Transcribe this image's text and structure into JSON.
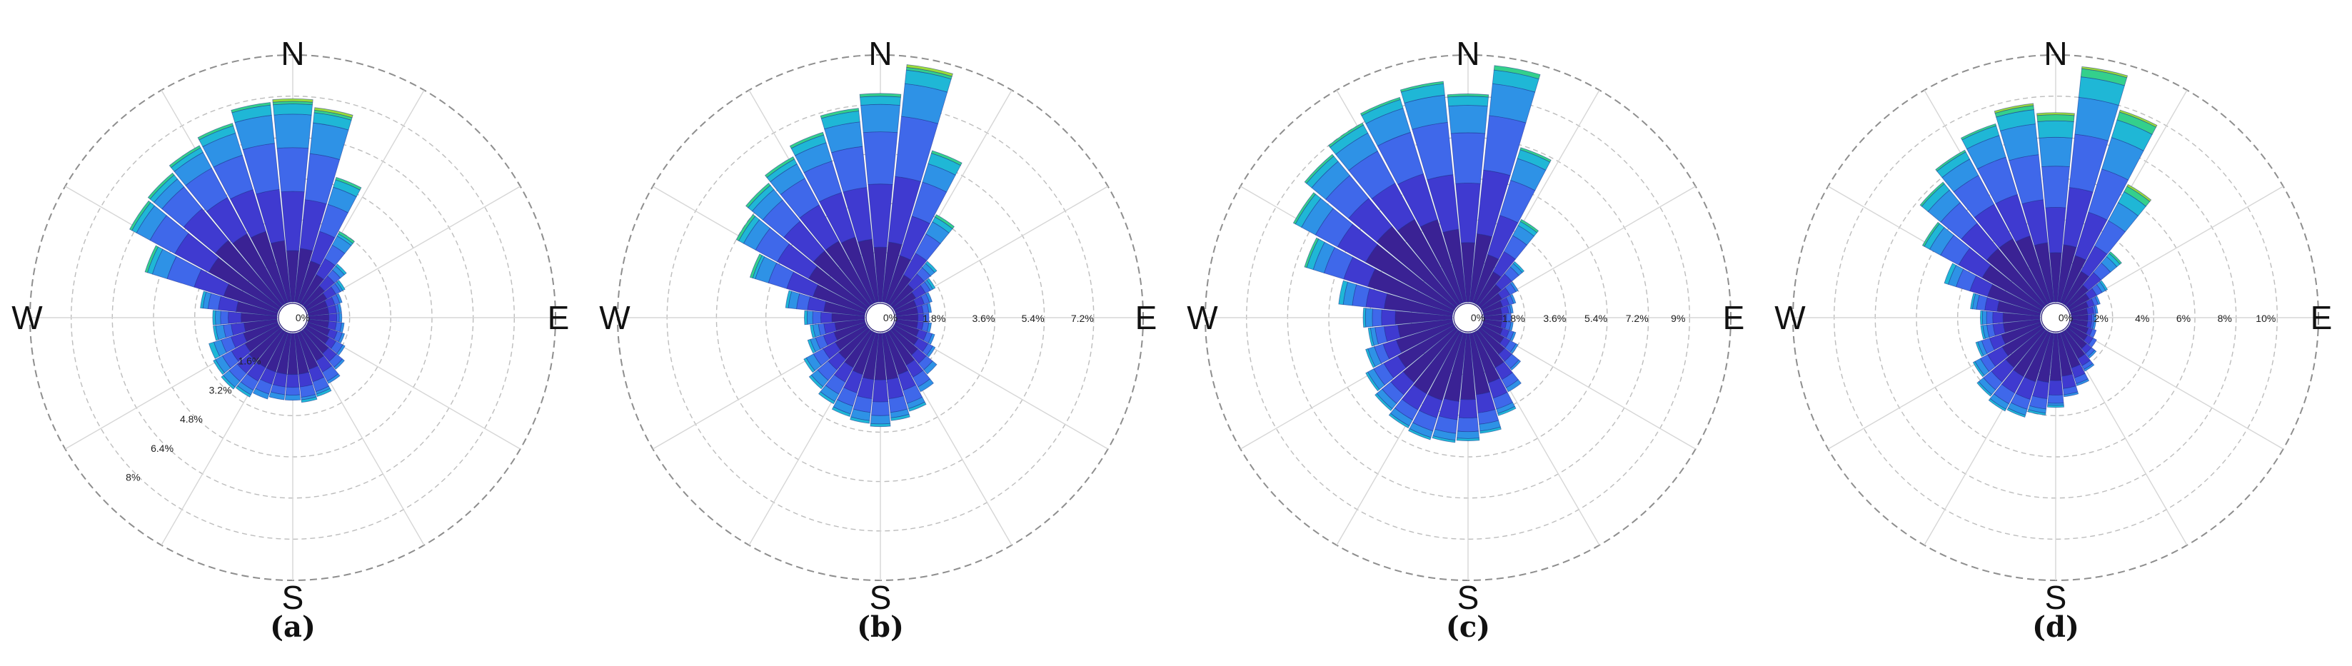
{
  "colors": {
    "bins": [
      "#3a2294",
      "#3f3ad0",
      "#3f68ea",
      "#2e92e6",
      "#1fb7d6",
      "#34d08c",
      "#9adc3a"
    ],
    "ring": "#bdbdbd",
    "spoke": "#d6d6d6"
  },
  "chart_data": [
    {
      "type": "wind-rose",
      "caption": "(a)",
      "directions": [
        "N",
        "N",
        "NNE",
        "NNE",
        "NE",
        "NE",
        "ENE",
        "ENE",
        "E",
        "E",
        "ESE",
        "ESE",
        "SE",
        "SE",
        "SSE",
        "SSE",
        "S",
        "S",
        "SSW",
        "SSW",
        "SW",
        "SW",
        "WSW",
        "WSW",
        "W",
        "W",
        "WNW",
        "WNW",
        "NW",
        "NW",
        "NNW",
        "NNW"
      ],
      "cardinals": [
        "N",
        "E",
        "S",
        "W"
      ],
      "ring_labels": [
        "0%",
        "1.6%",
        "3.2%",
        "4.8%",
        "6.4%",
        "8%"
      ],
      "rmax": 9.6,
      "stacked_frequency_pct": [
        [
          2.0,
          4.3,
          6.0,
          7.3,
          7.7,
          7.8,
          7.9
        ],
        [
          2.1,
          4.0,
          5.8,
          7.0,
          7.4,
          7.5,
          7.6
        ],
        [
          1.7,
          2.9,
          4.0,
          4.7,
          5.0,
          5.1,
          5.1
        ],
        [
          1.3,
          2.0,
          2.6,
          3.0,
          3.1,
          3.2,
          3.2
        ],
        [
          1.0,
          1.5,
          1.8,
          2.0,
          2.1,
          2.1,
          2.1
        ],
        [
          0.9,
          1.3,
          1.5,
          1.6,
          1.7,
          1.7,
          1.7
        ],
        [
          0.8,
          1.1,
          1.3,
          1.4,
          1.4,
          1.4,
          1.4
        ],
        [
          0.8,
          1.1,
          1.2,
          1.3,
          1.3,
          1.3,
          1.3
        ],
        [
          0.8,
          1.1,
          1.2,
          1.3,
          1.3,
          1.3,
          1.3
        ],
        [
          0.8,
          1.1,
          1.3,
          1.4,
          1.4,
          1.4,
          1.4
        ],
        [
          0.9,
          1.2,
          1.4,
          1.5,
          1.5,
          1.5,
          1.5
        ],
        [
          1.0,
          1.3,
          1.6,
          1.7,
          1.7,
          1.7,
          1.7
        ],
        [
          1.2,
          1.6,
          1.9,
          2.0,
          2.0,
          2.0,
          2.0
        ],
        [
          1.3,
          1.8,
          2.2,
          2.3,
          2.3,
          2.3,
          2.3
        ],
        [
          1.5,
          2.0,
          2.4,
          2.5,
          2.6,
          2.6,
          2.6
        ],
        [
          1.6,
          2.1,
          2.5,
          2.6,
          2.7,
          2.7,
          2.7
        ],
        [
          1.6,
          2.1,
          2.4,
          2.6,
          2.6,
          2.6,
          2.6
        ],
        [
          1.6,
          2.1,
          2.4,
          2.6,
          2.6,
          2.6,
          2.6
        ],
        [
          1.6,
          2.1,
          2.5,
          2.7,
          2.7,
          2.7,
          2.7
        ],
        [
          1.6,
          2.2,
          2.6,
          2.8,
          2.9,
          2.9,
          2.9
        ],
        [
          1.6,
          2.2,
          2.6,
          2.9,
          3.0,
          3.0,
          3.0
        ],
        [
          1.5,
          2.1,
          2.5,
          2.8,
          2.9,
          2.9,
          2.9
        ],
        [
          1.4,
          1.9,
          2.3,
          2.6,
          2.8,
          2.8,
          2.8
        ],
        [
          1.3,
          1.8,
          2.1,
          2.4,
          2.5,
          2.5,
          2.5
        ],
        [
          1.4,
          1.9,
          2.2,
          2.4,
          2.5,
          2.5,
          2.5
        ],
        [
          1.6,
          2.3,
          2.7,
          2.9,
          3.0,
          3.0,
          3.0
        ],
        [
          2.2,
          3.4,
          4.5,
          5.1,
          5.3,
          5.4,
          5.4
        ],
        [
          3.1,
          4.6,
          5.7,
          6.3,
          6.5,
          6.6,
          6.6
        ],
        [
          3.3,
          4.9,
          6.0,
          6.4,
          6.6,
          6.7,
          6.7
        ],
        [
          3.1,
          4.7,
          6.0,
          6.7,
          6.9,
          7.0,
          7.0
        ],
        [
          2.9,
          4.6,
          6.0,
          6.9,
          7.2,
          7.3,
          7.3
        ],
        [
          2.4,
          4.4,
          6.2,
          7.3,
          7.7,
          7.8,
          7.8
        ]
      ]
    },
    {
      "type": "wind-rose",
      "caption": "(b)",
      "directions": [
        "N",
        "N",
        "NNE",
        "NNE",
        "NE",
        "NE",
        "ENE",
        "ENE",
        "E",
        "E",
        "ESE",
        "ESE",
        "SE",
        "SE",
        "SSE",
        "SSE",
        "S",
        "S",
        "SSW",
        "SSW",
        "SW",
        "SW",
        "WSW",
        "WSW",
        "W",
        "W",
        "WNW",
        "WNW",
        "NW",
        "NW",
        "NNW",
        "NNW"
      ],
      "cardinals": [
        "N",
        "E",
        "S",
        "W"
      ],
      "ring_labels": [
        "0%",
        "1.8%",
        "3.6%",
        "5.4%",
        "7.2%"
      ],
      "rmax": 9.0,
      "stacked_frequency_pct": [
        [
          2.0,
          4.3,
          6.2,
          7.2,
          7.5,
          7.6,
          7.6
        ],
        [
          2.2,
          4.6,
          6.8,
          8.0,
          8.5,
          8.6,
          8.7
        ],
        [
          1.8,
          3.3,
          4.6,
          5.3,
          5.7,
          5.8,
          5.8
        ],
        [
          1.2,
          2.1,
          2.9,
          3.4,
          3.6,
          3.7,
          3.7
        ],
        [
          1.0,
          1.5,
          1.8,
          2.0,
          2.1,
          2.1,
          2.1
        ],
        [
          0.9,
          1.3,
          1.5,
          1.6,
          1.7,
          1.7,
          1.7
        ],
        [
          0.8,
          1.1,
          1.3,
          1.4,
          1.4,
          1.4,
          1.4
        ],
        [
          0.8,
          1.0,
          1.2,
          1.3,
          1.3,
          1.3,
          1.3
        ],
        [
          0.8,
          1.0,
          1.2,
          1.2,
          1.2,
          1.2,
          1.2
        ],
        [
          0.8,
          1.0,
          1.2,
          1.3,
          1.3,
          1.3,
          1.3
        ],
        [
          0.9,
          1.2,
          1.4,
          1.5,
          1.5,
          1.5,
          1.5
        ],
        [
          1.0,
          1.4,
          1.6,
          1.7,
          1.7,
          1.7,
          1.7
        ],
        [
          1.2,
          1.6,
          1.9,
          2.1,
          2.1,
          2.1,
          2.1
        ],
        [
          1.4,
          1.9,
          2.3,
          2.5,
          2.5,
          2.5,
          2.5
        ],
        [
          1.6,
          2.2,
          2.7,
          2.9,
          3.0,
          3.0,
          3.0
        ],
        [
          1.7,
          2.4,
          2.9,
          3.1,
          3.2,
          3.2,
          3.2
        ],
        [
          1.7,
          2.5,
          3.0,
          3.3,
          3.4,
          3.4,
          3.4
        ],
        [
          1.7,
          2.4,
          2.9,
          3.2,
          3.3,
          3.3,
          3.3
        ],
        [
          1.6,
          2.3,
          2.8,
          3.1,
          3.2,
          3.2,
          3.2
        ],
        [
          1.5,
          2.1,
          2.6,
          2.9,
          3.0,
          3.0,
          3.0
        ],
        [
          1.4,
          1.9,
          2.4,
          2.7,
          2.8,
          2.8,
          2.8
        ],
        [
          1.3,
          1.8,
          2.2,
          2.5,
          2.6,
          2.6,
          2.6
        ],
        [
          1.2,
          1.6,
          1.9,
          2.1,
          2.2,
          2.2,
          2.2
        ],
        [
          1.1,
          1.5,
          1.7,
          1.9,
          2.0,
          2.0,
          2.0
        ],
        [
          1.2,
          1.6,
          1.9,
          2.1,
          2.2,
          2.2,
          2.2
        ],
        [
          1.5,
          2.1,
          2.5,
          2.8,
          2.9,
          2.9,
          2.9
        ],
        [
          2.0,
          3.0,
          3.7,
          4.2,
          4.3,
          4.4,
          4.4
        ],
        [
          2.4,
          3.7,
          4.6,
          5.1,
          5.3,
          5.4,
          5.4
        ],
        [
          2.6,
          4.0,
          5.0,
          5.5,
          5.7,
          5.8,
          5.8
        ],
        [
          2.6,
          4.1,
          5.2,
          5.8,
          6.0,
          6.1,
          6.1
        ],
        [
          2.5,
          4.2,
          5.4,
          6.1,
          6.4,
          6.5,
          6.5
        ],
        [
          2.3,
          4.2,
          5.7,
          6.6,
          7.0,
          7.1,
          7.1
        ]
      ]
    },
    {
      "type": "wind-rose",
      "caption": "(c)",
      "directions": [
        "N",
        "N",
        "NNE",
        "NNE",
        "NE",
        "NE",
        "ENE",
        "ENE",
        "E",
        "E",
        "ESE",
        "ESE",
        "SE",
        "SE",
        "SSE",
        "SSE",
        "S",
        "S",
        "SSW",
        "SSW",
        "SW",
        "SW",
        "WSW",
        "WSW",
        "W",
        "W",
        "WNW",
        "WNW",
        "NW",
        "NW",
        "NNW",
        "NNW"
      ],
      "cardinals": [
        "N",
        "E",
        "S",
        "W"
      ],
      "ring_labels": [
        "0%",
        "1.8%",
        "3.6%",
        "5.4%",
        "7.2%",
        "9%"
      ],
      "rmax": 10.8,
      "stacked_frequency_pct": [
        [
          2.6,
          5.2,
          7.4,
          8.6,
          9.0,
          9.1,
          9.1
        ],
        [
          3.0,
          5.8,
          8.2,
          9.6,
          10.2,
          10.4,
          10.4
        ],
        [
          2.2,
          4.0,
          5.6,
          6.6,
          7.0,
          7.1,
          7.1
        ],
        [
          1.6,
          2.6,
          3.4,
          3.9,
          4.1,
          4.2,
          4.2
        ],
        [
          1.2,
          1.8,
          2.2,
          2.4,
          2.5,
          2.5,
          2.5
        ],
        [
          1.0,
          1.4,
          1.7,
          1.8,
          1.8,
          1.8,
          1.8
        ],
        [
          0.9,
          1.2,
          1.4,
          1.5,
          1.5,
          1.5,
          1.5
        ],
        [
          0.8,
          1.1,
          1.2,
          1.3,
          1.3,
          1.3,
          1.3
        ],
        [
          0.8,
          1.0,
          1.2,
          1.2,
          1.2,
          1.2,
          1.2
        ],
        [
          0.8,
          1.0,
          1.2,
          1.3,
          1.3,
          1.3,
          1.3
        ],
        [
          0.9,
          1.2,
          1.4,
          1.5,
          1.5,
          1.5,
          1.5
        ],
        [
          1.1,
          1.4,
          1.7,
          1.8,
          1.8,
          1.8,
          1.8
        ],
        [
          1.4,
          1.8,
          2.2,
          2.3,
          2.3,
          2.3,
          2.3
        ],
        [
          1.8,
          2.4,
          2.8,
          3.0,
          3.0,
          3.0,
          3.0
        ],
        [
          2.3,
          3.0,
          3.5,
          3.7,
          3.8,
          3.8,
          3.8
        ],
        [
          2.7,
          3.5,
          4.0,
          4.3,
          4.4,
          4.4,
          4.4
        ],
        [
          2.9,
          3.7,
          4.3,
          4.6,
          4.7,
          4.7,
          4.7
        ],
        [
          3.0,
          3.8,
          4.4,
          4.7,
          4.8,
          4.8,
          4.8
        ],
        [
          3.1,
          3.9,
          4.5,
          4.8,
          4.9,
          4.9,
          4.9
        ],
        [
          3.1,
          3.9,
          4.4,
          4.7,
          4.8,
          4.8,
          4.8
        ],
        [
          3.0,
          3.7,
          4.2,
          4.5,
          4.6,
          4.6,
          4.6
        ],
        [
          2.8,
          3.5,
          4.0,
          4.3,
          4.4,
          4.4,
          4.4
        ],
        [
          2.6,
          3.2,
          3.6,
          3.9,
          4.0,
          4.0,
          4.0
        ],
        [
          2.4,
          3.0,
          3.4,
          3.6,
          3.7,
          3.7,
          3.7
        ],
        [
          2.5,
          3.1,
          3.5,
          3.8,
          3.9,
          3.9,
          3.9
        ],
        [
          3.0,
          3.8,
          4.4,
          4.8,
          5.0,
          5.0,
          5.0
        ],
        [
          3.9,
          5.0,
          5.9,
          6.4,
          6.7,
          6.8,
          6.8
        ],
        [
          4.4,
          5.8,
          6.9,
          7.6,
          7.9,
          8.0,
          8.0
        ],
        [
          4.5,
          6.1,
          7.4,
          8.2,
          8.5,
          8.6,
          8.6
        ],
        [
          4.2,
          6.0,
          7.6,
          8.5,
          8.9,
          9.0,
          9.0
        ],
        [
          3.8,
          5.9,
          7.8,
          8.9,
          9.3,
          9.4,
          9.4
        ],
        [
          3.2,
          5.6,
          7.9,
          9.1,
          9.6,
          9.7,
          9.7
        ]
      ]
    },
    {
      "type": "wind-rose",
      "caption": "(d)",
      "directions": [
        "N",
        "N",
        "NNE",
        "NNE",
        "NE",
        "NE",
        "ENE",
        "ENE",
        "E",
        "E",
        "ESE",
        "ESE",
        "SE",
        "SE",
        "SSE",
        "SSE",
        "S",
        "S",
        "SSW",
        "SSW",
        "SW",
        "SW",
        "WSW",
        "WSW",
        "W",
        "W",
        "WNW",
        "WNW",
        "NW",
        "NW",
        "NNW",
        "NNW"
      ],
      "cardinals": [
        "N",
        "E",
        "S",
        "W"
      ],
      "ring_labels": [
        "0%",
        "2%",
        "4%",
        "6%",
        "8%",
        "10%"
      ],
      "rmax": 12.0,
      "stacked_frequency_pct": [
        [
          2.4,
          4.6,
          6.6,
          8.0,
          8.8,
          9.1,
          9.2
        ],
        [
          2.8,
          5.6,
          8.2,
          10.0,
          11.0,
          11.4,
          11.5
        ],
        [
          2.4,
          4.6,
          6.8,
          8.4,
          9.3,
          9.7,
          9.8
        ],
        [
          1.8,
          3.2,
          4.6,
          5.6,
          6.2,
          6.5,
          6.6
        ],
        [
          1.3,
          2.1,
          2.7,
          3.1,
          3.3,
          3.4,
          3.4
        ],
        [
          1.1,
          1.5,
          1.8,
          2.0,
          2.1,
          2.1,
          2.1
        ],
        [
          0.9,
          1.2,
          1.4,
          1.5,
          1.5,
          1.5,
          1.5
        ],
        [
          0.8,
          1.1,
          1.2,
          1.3,
          1.3,
          1.3,
          1.3
        ],
        [
          0.8,
          1.0,
          1.1,
          1.2,
          1.2,
          1.2,
          1.2
        ],
        [
          0.8,
          1.0,
          1.1,
          1.2,
          1.2,
          1.2,
          1.2
        ],
        [
          0.9,
          1.1,
          1.3,
          1.3,
          1.3,
          1.3,
          1.3
        ],
        [
          1.0,
          1.3,
          1.5,
          1.5,
          1.5,
          1.5,
          1.5
        ],
        [
          1.2,
          1.5,
          1.7,
          1.8,
          1.8,
          1.8,
          1.8
        ],
        [
          1.5,
          1.9,
          2.1,
          2.2,
          2.2,
          2.2,
          2.2
        ],
        [
          1.8,
          2.3,
          2.6,
          2.7,
          2.7,
          2.7,
          2.7
        ],
        [
          2.1,
          2.7,
          3.0,
          3.1,
          3.1,
          3.1,
          3.1
        ],
        [
          2.3,
          3.0,
          3.4,
          3.5,
          3.6,
          3.6,
          3.6
        ],
        [
          2.4,
          3.2,
          3.7,
          3.9,
          4.0,
          4.0,
          4.0
        ],
        [
          2.5,
          3.4,
          3.9,
          4.2,
          4.3,
          4.3,
          4.3
        ],
        [
          2.5,
          3.4,
          4.0,
          4.3,
          4.4,
          4.4,
          4.4
        ],
        [
          2.4,
          3.3,
          3.8,
          4.1,
          4.2,
          4.2,
          4.2
        ],
        [
          2.2,
          3.0,
          3.4,
          3.7,
          3.8,
          3.8,
          3.8
        ],
        [
          2.0,
          2.6,
          3.0,
          3.2,
          3.3,
          3.3,
          3.3
        ],
        [
          1.8,
          2.3,
          2.6,
          2.8,
          2.9,
          2.9,
          2.9
        ],
        [
          1.8,
          2.3,
          2.6,
          2.8,
          2.9,
          2.9,
          2.9
        ],
        [
          2.1,
          2.7,
          3.1,
          3.3,
          3.4,
          3.4,
          3.4
        ],
        [
          2.7,
          3.6,
          4.3,
          4.7,
          4.9,
          4.9,
          4.9
        ],
        [
          3.3,
          4.6,
          5.6,
          6.2,
          6.5,
          6.6,
          6.6
        ],
        [
          3.6,
          5.2,
          6.5,
          7.3,
          7.7,
          7.8,
          7.8
        ],
        [
          3.6,
          5.5,
          7.1,
          8.0,
          8.4,
          8.5,
          8.5
        ],
        [
          3.4,
          5.5,
          7.4,
          8.5,
          9.0,
          9.1,
          9.1
        ],
        [
          2.9,
          5.0,
          7.2,
          8.7,
          9.4,
          9.6,
          9.7
        ]
      ]
    }
  ]
}
